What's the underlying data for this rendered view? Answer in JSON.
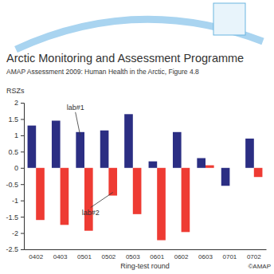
{
  "chart_data": {
    "type": "bar",
    "title": "Arctic Monitoring and Assessment Programme",
    "subtitle": "AMAP Assessment 2009: Human Health in the Arctic, Figure 4.8",
    "y_label": "RSZs",
    "x_label": "Ring-test round",
    "annotations": [
      "©AMAP"
    ],
    "categories": [
      "0402",
      "0403",
      "0501",
      "0502",
      "0503",
      "0601",
      "0602",
      "0603",
      "0701",
      "0702"
    ],
    "series": [
      {
        "name": "lab#1",
        "color": "#2b2e83",
        "values": [
          1.3,
          1.45,
          1.1,
          1.15,
          1.65,
          0.2,
          1.1,
          0.3,
          -0.55,
          0.9
        ]
      },
      {
        "name": "lab#2",
        "color": "#ee3b33",
        "values": [
          -1.6,
          -1.75,
          -1.93,
          -0.85,
          -1.42,
          -2.22,
          -1.97,
          0.08,
          null,
          -0.28
        ]
      }
    ],
    "ylim": [
      -2.5,
      2
    ],
    "yticks": [
      -2.5,
      -2,
      -1.5,
      -1,
      -0.5,
      0,
      0.5,
      1,
      1.5,
      2
    ],
    "grid": false
  }
}
